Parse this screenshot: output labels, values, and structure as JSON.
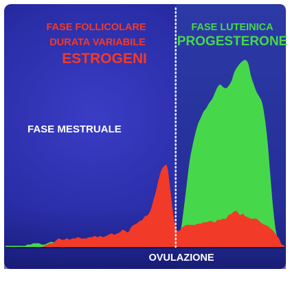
{
  "chart_data": {
    "type": "area",
    "title": "",
    "xlabel": "OVULAZIONE",
    "ylabel": "",
    "grid": false,
    "legend": "none",
    "x": [
      0,
      1,
      2,
      3,
      4,
      5,
      6,
      7,
      8,
      9,
      10,
      11,
      12,
      13,
      14,
      15,
      16,
      17,
      18,
      19,
      20,
      21,
      22,
      23,
      24,
      25,
      26,
      27,
      28,
      29,
      30,
      31,
      32,
      33,
      34,
      35,
      36,
      37,
      38,
      39,
      40,
      41,
      42,
      43,
      44,
      45,
      46,
      47,
      48,
      49,
      50,
      51,
      52,
      53,
      54,
      55,
      56,
      57,
      58,
      59,
      60,
      61,
      62,
      63,
      64,
      65,
      66,
      67,
      68,
      69,
      70,
      71,
      72,
      73,
      74,
      75,
      76,
      77,
      78,
      79,
      80,
      81,
      82,
      83,
      84,
      85,
      86,
      87,
      88,
      89,
      90,
      91,
      92,
      93,
      94,
      95,
      96,
      97,
      98,
      99,
      100
    ],
    "series": [
      {
        "name": "ESTROGENI",
        "color": "#f23a28",
        "values": [
          0,
          0,
          0,
          0,
          0,
          0,
          0,
          0,
          0,
          0,
          0,
          0,
          0,
          0,
          1,
          2,
          3,
          3,
          5,
          7,
          6,
          6,
          7,
          6,
          7,
          7,
          8,
          7,
          7,
          7,
          8,
          8,
          9,
          8,
          9,
          8,
          9,
          10,
          11,
          10,
          11,
          12,
          14,
          13,
          12,
          16,
          18,
          19,
          21,
          22,
          25,
          26,
          30,
          38,
          46,
          56,
          63,
          66,
          65,
          48,
          29,
          16,
          13,
          15,
          17,
          18,
          18,
          18,
          18,
          19,
          19,
          20,
          20,
          21,
          21,
          20,
          22,
          22,
          23,
          23,
          26,
          27,
          29,
          29,
          26,
          27,
          25,
          24,
          23,
          23,
          23,
          21,
          19,
          18,
          17,
          15,
          13,
          10,
          7,
          2,
          1
        ]
      },
      {
        "name": "PROGESTERONE",
        "color": "#46d84a",
        "values": [
          1,
          1,
          1,
          1,
          1,
          1,
          1,
          1,
          2,
          2,
          3,
          3,
          3,
          2,
          2,
          3,
          4,
          4,
          3,
          3,
          3,
          4,
          4,
          3,
          3,
          3,
          4,
          4,
          3,
          3,
          3,
          4,
          4,
          4,
          3,
          3,
          3,
          3,
          3,
          3,
          4,
          4,
          4,
          4,
          3,
          3,
          3,
          3,
          3,
          3,
          3,
          3,
          3,
          3,
          2,
          2,
          2,
          2,
          2,
          2,
          2,
          2,
          5,
          16,
          33,
          52,
          70,
          82,
          92,
          100,
          105,
          110,
          113,
          117,
          120,
          125,
          130,
          132,
          130,
          129,
          131,
          135,
          142,
          146,
          149,
          151,
          152,
          149,
          139,
          132,
          126,
          122,
          117,
          104,
          84,
          56,
          30,
          12,
          5,
          2,
          1
        ]
      }
    ],
    "annotations": [
      {
        "text": "FASE FOLLICOLARE",
        "color": "#f23a28"
      },
      {
        "text": "DURATA VARIABILE",
        "color": "#f23a28"
      },
      {
        "text": "ESTROGENI",
        "color": "#f23a28"
      },
      {
        "text": "FASE LUTEINICA",
        "color": "#46d84a"
      },
      {
        "text": "PROGESTERONE",
        "color": "#46d84a"
      },
      {
        "text": "FASE MESTRUALE",
        "color": "#ffffff"
      },
      {
        "text": "OVULAZIONE",
        "color": "#ffffff"
      }
    ],
    "ovulation_x": 61,
    "colors": {
      "background": "#2b2faa",
      "luteal_background": "#28309c",
      "axis_band": "#1b2080"
    }
  }
}
